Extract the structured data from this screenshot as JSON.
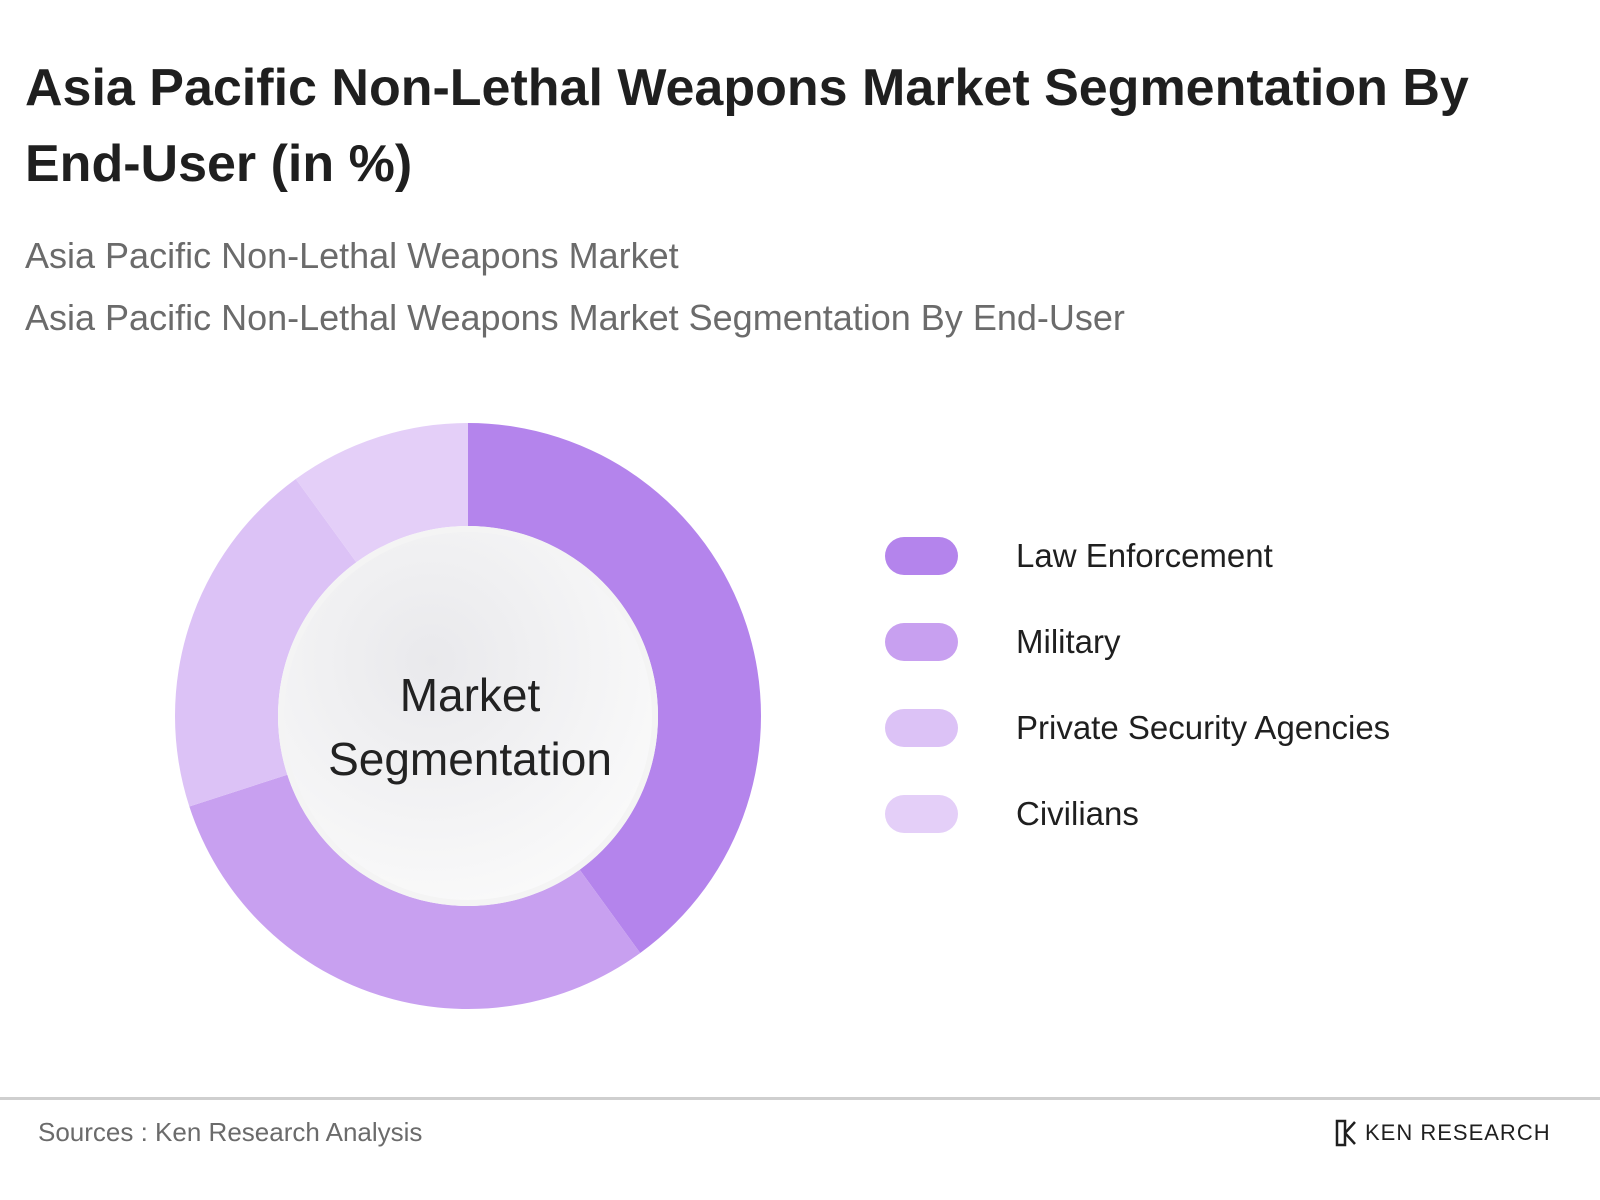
{
  "header": {
    "title": "Asia Pacific Non-Lethal Weapons Market Segmentation By End-User (in %)",
    "subtitle_1": "Asia Pacific Non-Lethal Weapons Market",
    "subtitle_2": "Asia Pacific Non-Lethal Weapons Market Segmentation By End-User"
  },
  "chart_data": {
    "type": "pie",
    "variant": "donut",
    "center_label": "Market Segmentation",
    "categories": [
      "Law Enforcement",
      "Military",
      "Private Security Agencies",
      "Civilians"
    ],
    "values": [
      40,
      30,
      20,
      10
    ],
    "colors": [
      "#b484ec",
      "#c8a0f0",
      "#dcc2f6",
      "#e4cff8"
    ],
    "legend_position": "right"
  },
  "footer": {
    "source": "Sources : Ken Research Analysis",
    "brand": "KEN RESEARCH"
  }
}
